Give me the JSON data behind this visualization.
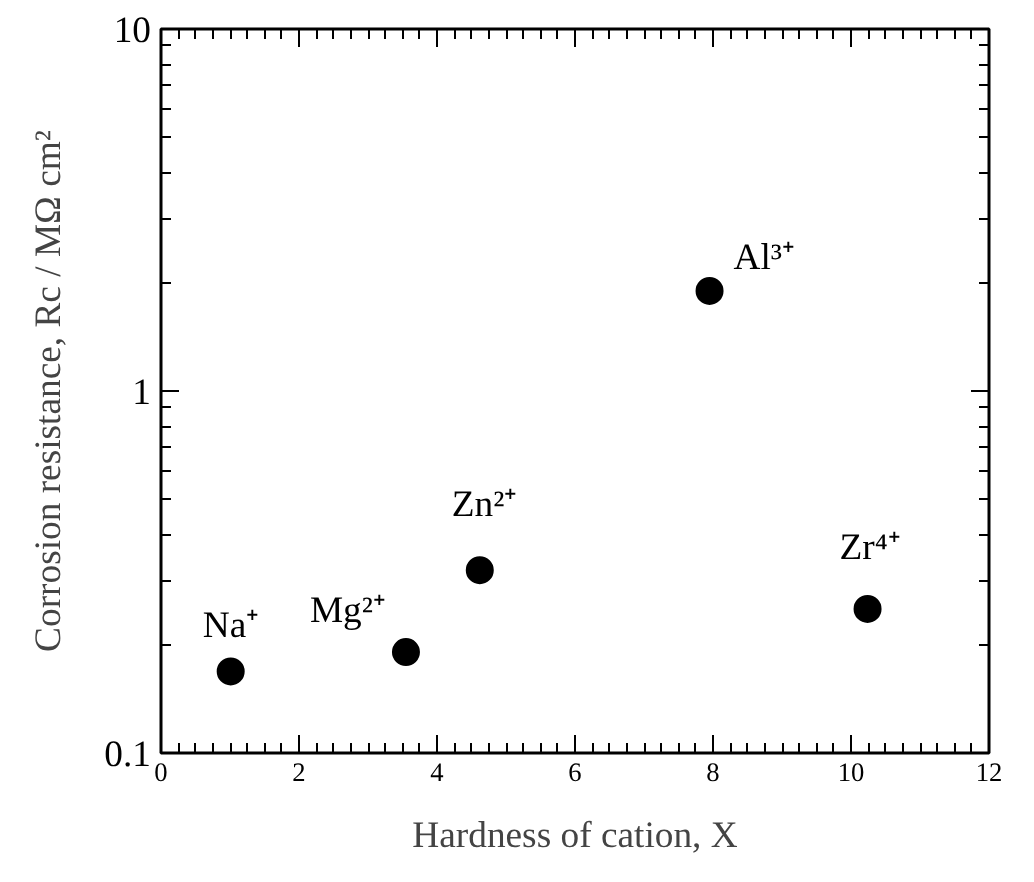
{
  "chart_data": {
    "type": "scatter",
    "xlabel": "Hardness of cation, X",
    "ylabel": "Corrosion resistance, Rc / MΩ cm²",
    "x": [
      1.01,
      3.55,
      4.62,
      7.95,
      10.24
    ],
    "values": [
      0.168,
      0.19,
      0.32,
      1.89,
      0.25
    ],
    "color": "#000000",
    "marker": "circle",
    "log": "y",
    "xlim": [
      0,
      12
    ],
    "xticks": [
      0,
      2,
      4,
      6,
      8,
      10,
      12
    ],
    "ylim": [
      0.1,
      10
    ],
    "yticks": [
      0.1,
      1,
      10
    ],
    "annotations": [
      {
        "text": "Na⁺",
        "x": 1.01,
        "y": 0.168
      },
      {
        "text": "Mg²⁺",
        "x": 3.55,
        "y": 0.19
      },
      {
        "text": "Zn²⁺",
        "x": 4.62,
        "y": 0.32
      },
      {
        "text": "Al³⁺",
        "x": 7.95,
        "y": 1.89
      },
      {
        "text": "Zr⁴⁺",
        "x": 10.24,
        "y": 0.25
      }
    ],
    "grid": false
  }
}
